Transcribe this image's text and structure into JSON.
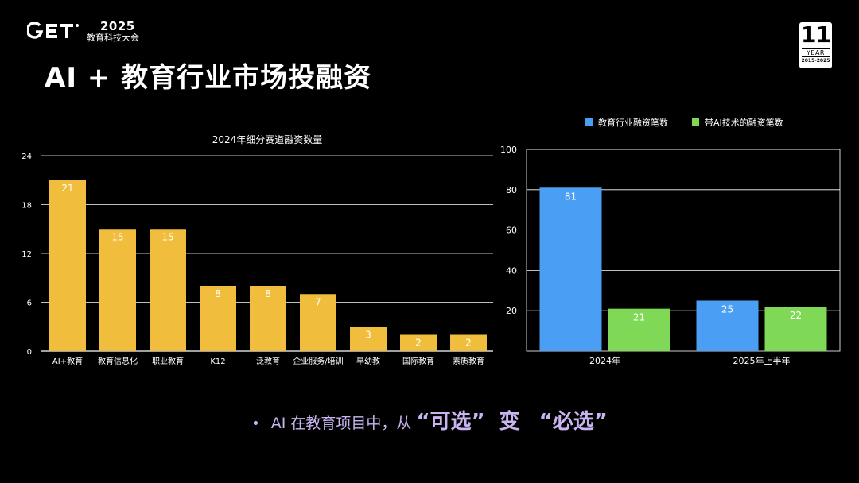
{
  "header": {
    "logo_year": "2025",
    "logo_subtitle": "教育科技大会",
    "badge_number": "11",
    "badge_word": "YEAR",
    "badge_range": "2015-2025"
  },
  "title": "AI + 教育行业市场投融资",
  "note": {
    "lead": "AI 在教育项目中，从",
    "term_a": "“可选”",
    "connector": "变",
    "term_b": "“必选”"
  },
  "colors": {
    "yellow": "#f0bd3c",
    "blue": "#4a9ff5",
    "green": "#7fd957",
    "note": "#c8b4f0"
  },
  "chart_data": [
    {
      "type": "bar",
      "title": "2024年细分赛道融资数量",
      "categories": [
        "AI+教育",
        "教育信息化",
        "职业教育",
        "K12",
        "泛教育",
        "企业服务/培训",
        "早幼教",
        "国际教育",
        "素质教育"
      ],
      "values": [
        21,
        15,
        15,
        8,
        8,
        7,
        3,
        2,
        2
      ],
      "ylim": [
        0,
        24
      ],
      "yticks": [
        0,
        6,
        12,
        18,
        24
      ],
      "grid": true,
      "color": "#f0bd3c"
    },
    {
      "type": "bar",
      "categories": [
        "2024年",
        "2025年上半年"
      ],
      "series": [
        {
          "name": "教育行业融资笔数",
          "values": [
            81,
            25
          ],
          "color": "#4a9ff5"
        },
        {
          "name": "带AI技术的融资笔数",
          "values": [
            21,
            22
          ],
          "color": "#7fd957"
        }
      ],
      "ylim": [
        0,
        100
      ],
      "yticks": [
        20,
        40,
        60,
        80,
        100
      ],
      "legend": "top",
      "grid": true
    }
  ]
}
